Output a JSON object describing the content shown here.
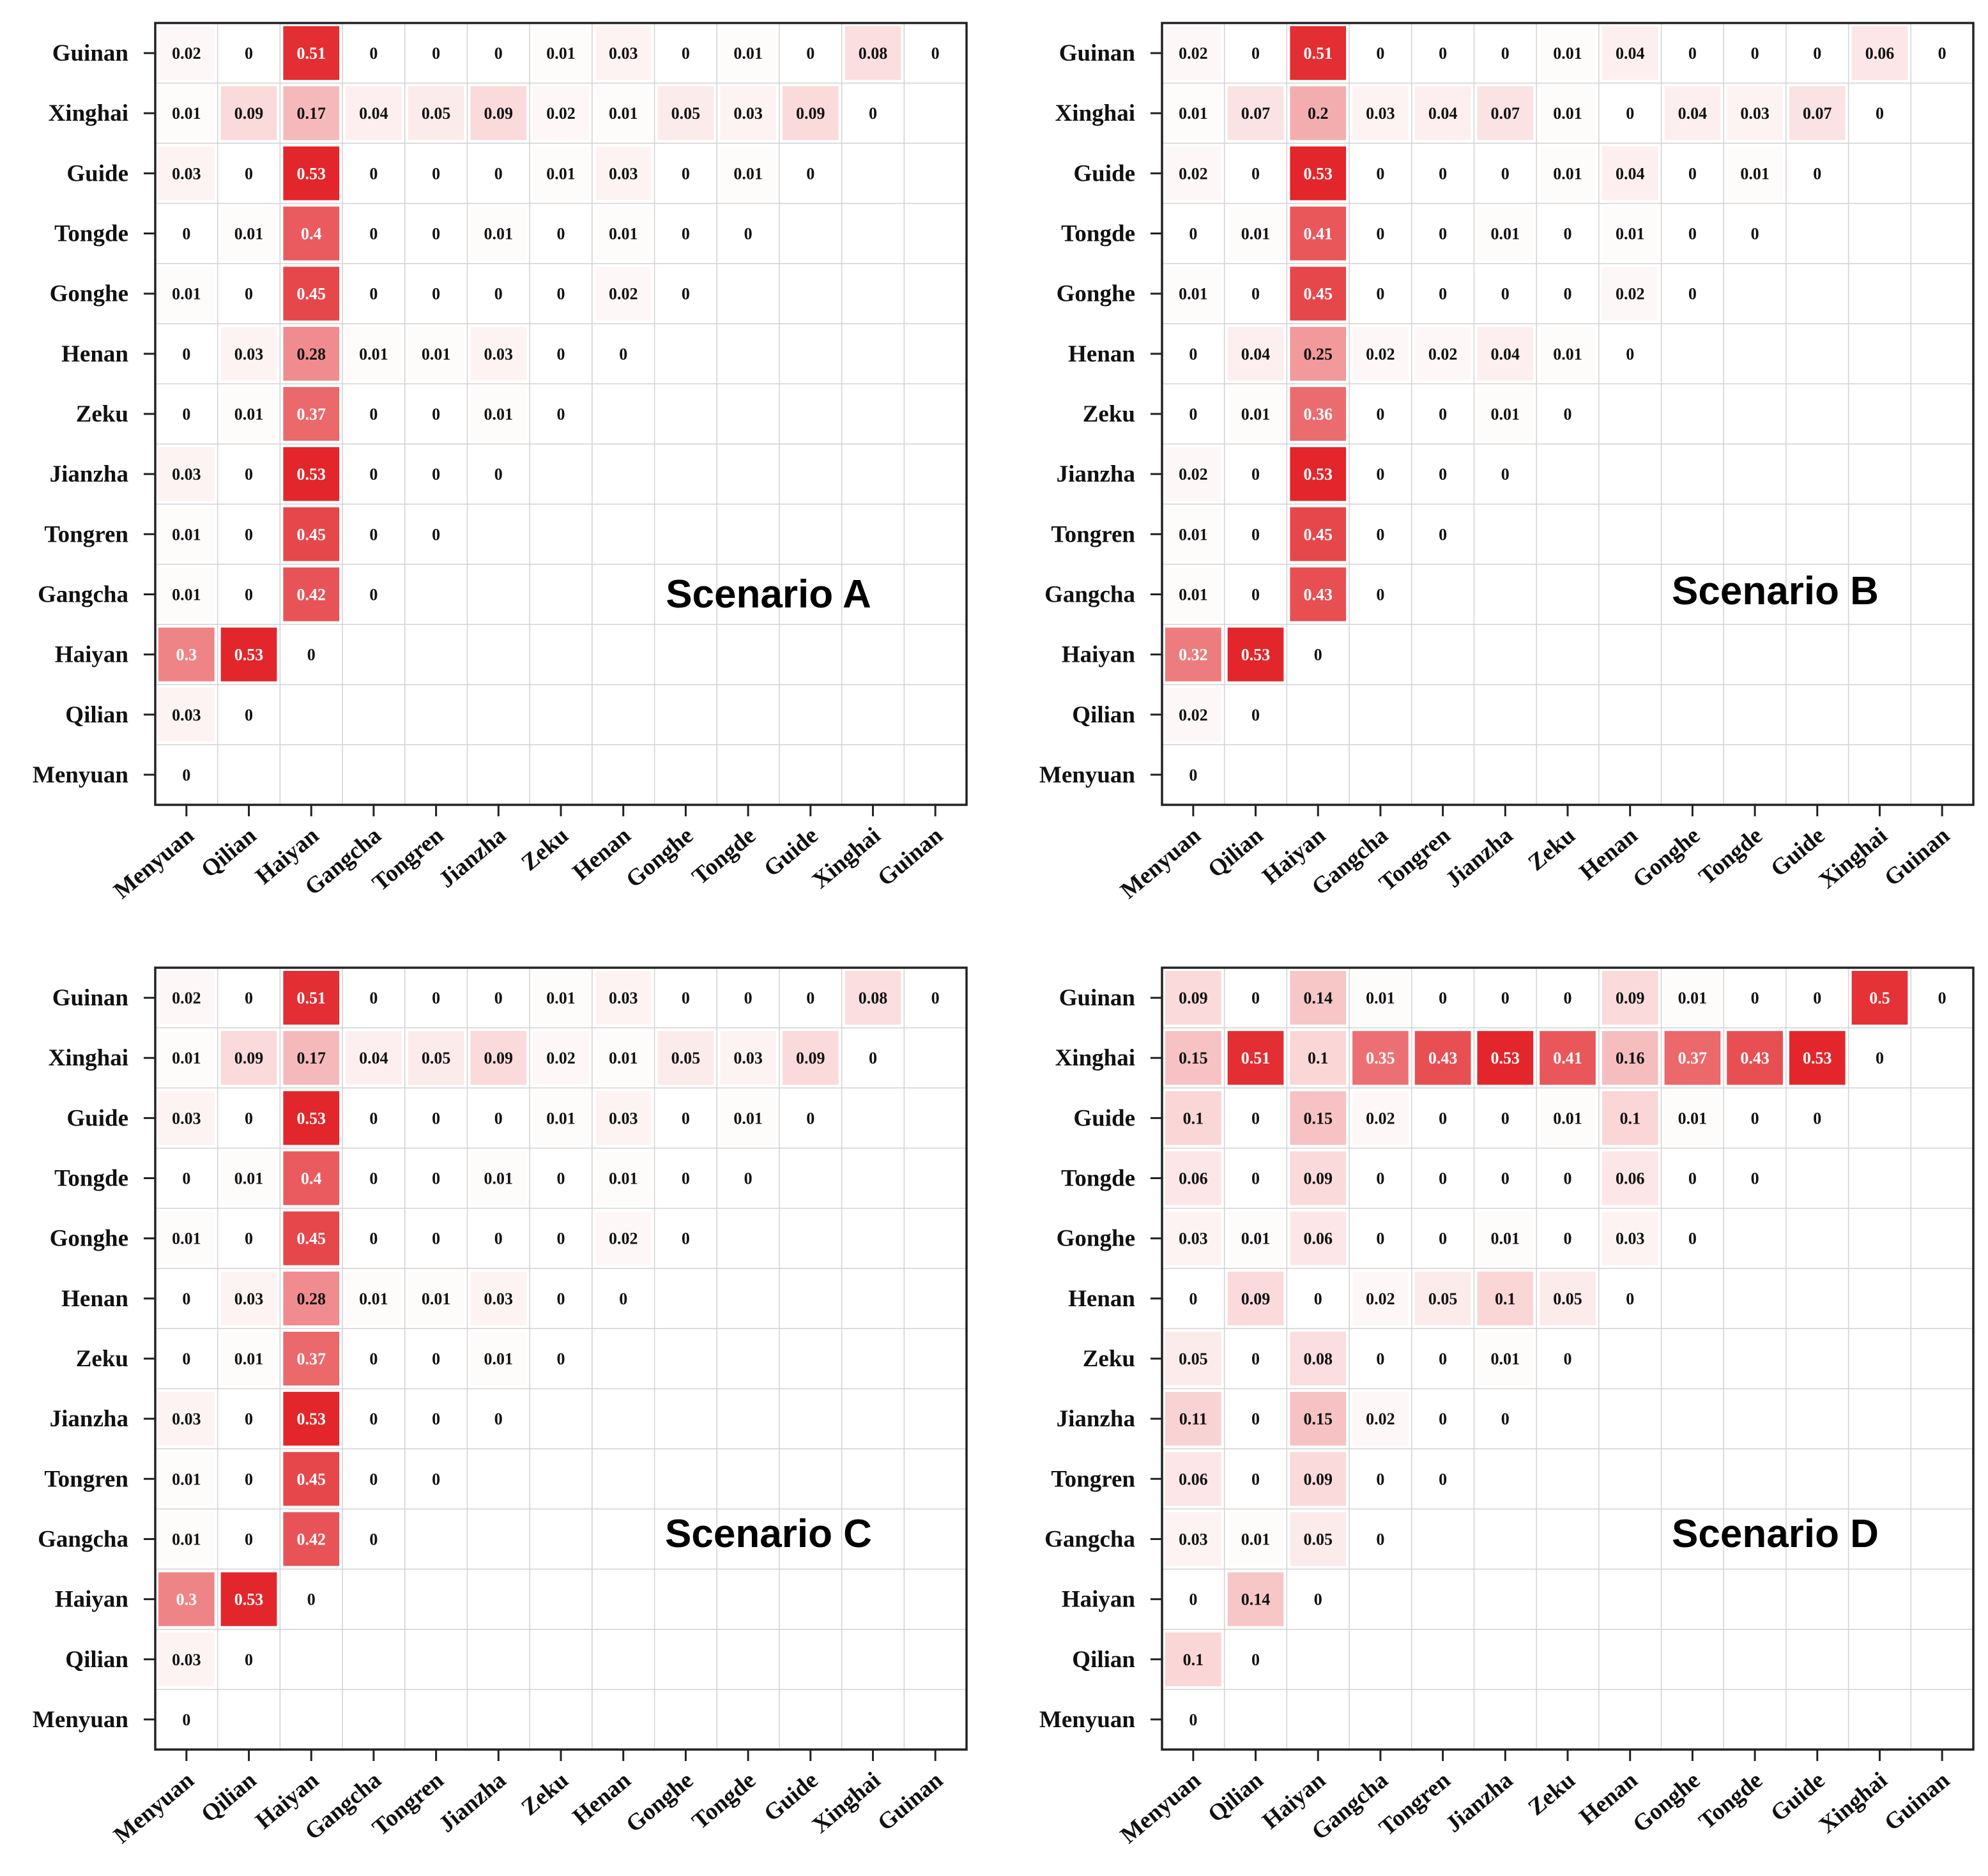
{
  "colors": {
    "low": "#ffffff",
    "high": "#e2262b",
    "grid": "#d2d2d2",
    "frame": "#222222"
  },
  "color_scale": {
    "min": 0,
    "max": 0.53
  },
  "chart_data": [
    {
      "type": "heatmap",
      "title": "Scenario A",
      "rows": [
        "Guinan",
        "Xinghai",
        "Guide",
        "Tongde",
        "Gonghe",
        "Henan",
        "Zeku",
        "Jianzha",
        "Tongren",
        "Gangcha",
        "Haiyan",
        "Qilian",
        "Menyuan"
      ],
      "columns": [
        "Menyuan",
        "Qilian",
        "Haiyan",
        "Gangcha",
        "Tongren",
        "Jianzha",
        "Zeku",
        "Henan",
        "Gonghe",
        "Tongde",
        "Guide",
        "Xinghai",
        "Guinan"
      ],
      "values": [
        [
          0.02,
          0,
          0.51,
          0,
          0,
          0,
          0.01,
          0.03,
          0,
          0.01,
          0,
          0.08,
          0
        ],
        [
          0.01,
          0.09,
          0.17,
          0.04,
          0.05,
          0.09,
          0.02,
          0.01,
          0.05,
          0.03,
          0.09,
          0
        ],
        [
          0.03,
          0,
          0.53,
          0,
          0,
          0,
          0.01,
          0.03,
          0,
          0.01,
          0
        ],
        [
          0,
          0.01,
          0.4,
          0,
          0,
          0.01,
          0,
          0.01,
          0,
          0
        ],
        [
          0.01,
          0,
          0.45,
          0,
          0,
          0,
          0,
          0.02,
          0
        ],
        [
          0,
          0.03,
          0.28,
          0.01,
          0.01,
          0.03,
          0,
          0
        ],
        [
          0,
          0.01,
          0.37,
          0,
          0,
          0.01,
          0
        ],
        [
          0.03,
          0,
          0.53,
          0,
          0,
          0
        ],
        [
          0.01,
          0,
          0.45,
          0,
          0
        ],
        [
          0.01,
          0,
          0.42,
          0
        ],
        [
          0.3,
          0.53,
          0
        ],
        [
          0.03,
          0
        ],
        [
          0
        ]
      ]
    },
    {
      "type": "heatmap",
      "title": "Scenario B",
      "rows": [
        "Guinan",
        "Xinghai",
        "Guide",
        "Tongde",
        "Gonghe",
        "Henan",
        "Zeku",
        "Jianzha",
        "Tongren",
        "Gangcha",
        "Haiyan",
        "Qilian",
        "Menyuan"
      ],
      "columns": [
        "Menyuan",
        "Qilian",
        "Haiyan",
        "Gangcha",
        "Tongren",
        "Jianzha",
        "Zeku",
        "Henan",
        "Gonghe",
        "Tongde",
        "Guide",
        "Xinghai",
        "Guinan"
      ],
      "values": [
        [
          0.02,
          0,
          0.51,
          0,
          0,
          0,
          0.01,
          0.04,
          0,
          0,
          0,
          0.06,
          0
        ],
        [
          0.01,
          0.07,
          0.2,
          0.03,
          0.04,
          0.07,
          0.01,
          0,
          0.04,
          0.03,
          0.07,
          0
        ],
        [
          0.02,
          0,
          0.53,
          0,
          0,
          0,
          0.01,
          0.04,
          0,
          0.01,
          0
        ],
        [
          0,
          0.01,
          0.41,
          0,
          0,
          0.01,
          0,
          0.01,
          0,
          0
        ],
        [
          0.01,
          0,
          0.45,
          0,
          0,
          0,
          0,
          0.02,
          0
        ],
        [
          0,
          0.04,
          0.25,
          0.02,
          0.02,
          0.04,
          0.01,
          0
        ],
        [
          0,
          0.01,
          0.36,
          0,
          0,
          0.01,
          0
        ],
        [
          0.02,
          0,
          0.53,
          0,
          0,
          0
        ],
        [
          0.01,
          0,
          0.45,
          0,
          0
        ],
        [
          0.01,
          0,
          0.43,
          0
        ],
        [
          0.32,
          0.53,
          0
        ],
        [
          0.02,
          0
        ],
        [
          0
        ]
      ]
    },
    {
      "type": "heatmap",
      "title": "Scenario C",
      "rows": [
        "Guinan",
        "Xinghai",
        "Guide",
        "Tongde",
        "Gonghe",
        "Henan",
        "Zeku",
        "Jianzha",
        "Tongren",
        "Gangcha",
        "Haiyan",
        "Qilian",
        "Menyuan"
      ],
      "columns": [
        "Menyuan",
        "Qilian",
        "Haiyan",
        "Gangcha",
        "Tongren",
        "Jianzha",
        "Zeku",
        "Henan",
        "Gonghe",
        "Tongde",
        "Guide",
        "Xinghai",
        "Guinan"
      ],
      "values": [
        [
          0.02,
          0,
          0.51,
          0,
          0,
          0,
          0.01,
          0.03,
          0,
          0,
          0,
          0.08,
          0
        ],
        [
          0.01,
          0.09,
          0.17,
          0.04,
          0.05,
          0.09,
          0.02,
          0.01,
          0.05,
          0.03,
          0.09,
          0
        ],
        [
          0.03,
          0,
          0.53,
          0,
          0,
          0,
          0.01,
          0.03,
          0,
          0.01,
          0
        ],
        [
          0,
          0.01,
          0.4,
          0,
          0,
          0.01,
          0,
          0.01,
          0,
          0
        ],
        [
          0.01,
          0,
          0.45,
          0,
          0,
          0,
          0,
          0.02,
          0
        ],
        [
          0,
          0.03,
          0.28,
          0.01,
          0.01,
          0.03,
          0,
          0
        ],
        [
          0,
          0.01,
          0.37,
          0,
          0,
          0.01,
          0
        ],
        [
          0.03,
          0,
          0.53,
          0,
          0,
          0
        ],
        [
          0.01,
          0,
          0.45,
          0,
          0
        ],
        [
          0.01,
          0,
          0.42,
          0
        ],
        [
          0.3,
          0.53,
          0
        ],
        [
          0.03,
          0
        ],
        [
          0
        ]
      ]
    },
    {
      "type": "heatmap",
      "title": "Scenario D",
      "rows": [
        "Guinan",
        "Xinghai",
        "Guide",
        "Tongde",
        "Gonghe",
        "Henan",
        "Zeku",
        "Jianzha",
        "Tongren",
        "Gangcha",
        "Haiyan",
        "Qilian",
        "Menyuan"
      ],
      "columns": [
        "Menyuan",
        "Qilian",
        "Haiyan",
        "Gangcha",
        "Tongren",
        "Jianzha",
        "Zeku",
        "Henan",
        "Gonghe",
        "Tongde",
        "Guide",
        "Xinghai",
        "Guinan"
      ],
      "values": [
        [
          0.09,
          0,
          0.14,
          0.01,
          0,
          0,
          0,
          0.09,
          0.01,
          0,
          0,
          0.5,
          0
        ],
        [
          0.15,
          0.51,
          0.1,
          0.35,
          0.43,
          0.53,
          0.41,
          0.16,
          0.37,
          0.43,
          0.53,
          0
        ],
        [
          0.1,
          0,
          0.15,
          0.02,
          0,
          0,
          0.01,
          0.1,
          0.01,
          0,
          0
        ],
        [
          0.06,
          0,
          0.09,
          0,
          0,
          0,
          0,
          0.06,
          0,
          0
        ],
        [
          0.03,
          0.01,
          0.06,
          0,
          0,
          0.01,
          0,
          0.03,
          0
        ],
        [
          0,
          0.09,
          0,
          0.02,
          0.05,
          0.1,
          0.05,
          0
        ],
        [
          0.05,
          0,
          0.08,
          0,
          0,
          0.01,
          0
        ],
        [
          0.11,
          0,
          0.15,
          0.02,
          0,
          0
        ],
        [
          0.06,
          0,
          0.09,
          0,
          0
        ],
        [
          0.03,
          0.01,
          0.05,
          0
        ],
        [
          0,
          0.14,
          0
        ],
        [
          0.1,
          0
        ],
        [
          0
        ]
      ]
    }
  ]
}
